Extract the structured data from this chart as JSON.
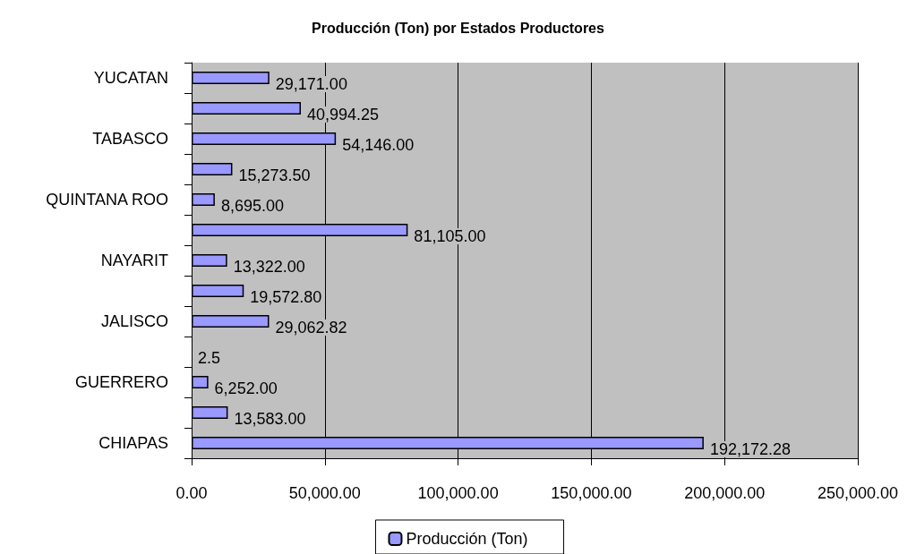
{
  "chart_data": {
    "type": "bar",
    "orientation": "horizontal",
    "title": "Producción (Ton) por Estados Productores",
    "categories": [
      "YUCATAN",
      null,
      "TABASCO",
      null,
      "QUINTANA ROO",
      null,
      "NAYARIT",
      null,
      "JALISCO",
      null,
      "GUERRERO",
      null,
      "CHIAPAS"
    ],
    "series": [
      {
        "name": "Producción (Ton)",
        "color": "#9999ff",
        "values": [
          29171.0,
          40994.25,
          54146.0,
          15273.5,
          8695.0,
          81105.0,
          13322.0,
          19572.8,
          29062.82,
          2.5,
          6252.0,
          13583.0,
          192172.28
        ],
        "value_labels": [
          "29,171.00",
          "40,994.25",
          "54,146.00",
          "15,273.50",
          "8,695.00",
          "81,105.00",
          "13,322.00",
          "19,572.80",
          "29,062.82",
          "2.5",
          "6,252.00",
          "13,583.00",
          "192,172.28"
        ]
      }
    ],
    "xlim": [
      0,
      250000
    ],
    "xticks": [
      {
        "value": 0,
        "label": "0.00"
      },
      {
        "value": 50000,
        "label": "50,000.00"
      },
      {
        "value": 100000,
        "label": "100,000.00"
      },
      {
        "value": 150000,
        "label": "150,000.00"
      },
      {
        "value": 200000,
        "label": "200,000.00"
      },
      {
        "value": 250000,
        "label": "250,000.00"
      }
    ],
    "grid": "x",
    "legend": "bottom"
  }
}
